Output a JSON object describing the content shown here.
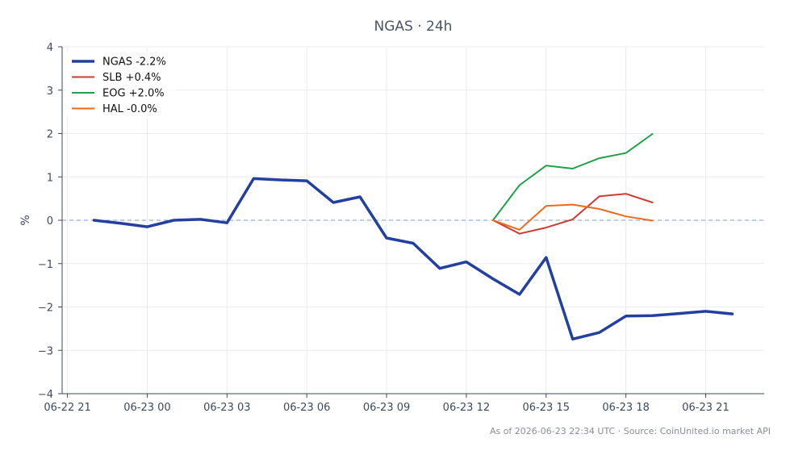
{
  "chart_data": {
    "type": "line",
    "title": "NGAS · 24h",
    "ylabel": "%",
    "xlabel": "",
    "x_tick_labels": [
      "06-22 21",
      "06-23 00",
      "06-23 03",
      "06-23 06",
      "06-23 09",
      "06-23 12",
      "06-23 15",
      "06-23 18",
      "06-23 21"
    ],
    "x_tick_hours": [
      -3,
      0,
      3,
      6,
      9,
      12,
      15,
      18,
      21
    ],
    "xlim_hours": [
      -3.2,
      23.2
    ],
    "ylim": [
      -4,
      4
    ],
    "y_ticks": [
      -4,
      -3,
      -2,
      -1,
      0,
      1,
      2,
      3,
      4
    ],
    "y_tick_labels": [
      "−4",
      "−3",
      "−2",
      "−1",
      "0",
      "1",
      "2",
      "3",
      "4"
    ],
    "reference_line": 0,
    "grid": true,
    "legend_position": "top-left",
    "series": [
      {
        "name": "NGAS -2.2%",
        "color": "#2340a0",
        "width": 3.5,
        "points": [
          [
            -2,
            0.0
          ],
          [
            -1,
            -0.07
          ],
          [
            0,
            -0.15
          ],
          [
            1,
            0.0
          ],
          [
            2,
            0.02
          ],
          [
            3,
            -0.06
          ],
          [
            4,
            0.96
          ],
          [
            5,
            0.93
          ],
          [
            6,
            0.91
          ],
          [
            7,
            0.41
          ],
          [
            8,
            0.54
          ],
          [
            9,
            -0.41
          ],
          [
            10,
            -0.53
          ],
          [
            11,
            -1.11
          ],
          [
            12,
            -0.96
          ],
          [
            13,
            -1.35
          ],
          [
            14,
            -1.71
          ],
          [
            15,
            -0.86
          ],
          [
            16,
            -2.74
          ],
          [
            17,
            -2.59
          ],
          [
            18,
            -2.21
          ],
          [
            19,
            -2.2
          ],
          [
            20,
            -2.15
          ],
          [
            21,
            -2.1
          ],
          [
            22,
            -2.16
          ]
        ]
      },
      {
        "name": "SLB +0.4%",
        "color": "#d03a32",
        "width": 2,
        "points": [
          [
            13,
            0.0
          ],
          [
            14,
            -0.31
          ],
          [
            15,
            -0.17
          ],
          [
            16,
            0.02
          ],
          [
            17,
            0.55
          ],
          [
            18,
            0.61
          ],
          [
            19,
            0.41
          ]
        ]
      },
      {
        "name": "EOG +2.0%",
        "color": "#1fa14a",
        "width": 2,
        "points": [
          [
            13,
            0.0
          ],
          [
            14,
            0.81
          ],
          [
            15,
            1.26
          ],
          [
            16,
            1.19
          ],
          [
            17,
            1.43
          ],
          [
            18,
            1.55
          ],
          [
            19,
            1.99
          ]
        ]
      },
      {
        "name": "HAL -0.0%",
        "color": "#ec6a1e",
        "width": 2,
        "points": [
          [
            13,
            0.0
          ],
          [
            14,
            -0.22
          ],
          [
            15,
            0.33
          ],
          [
            16,
            0.36
          ],
          [
            17,
            0.26
          ],
          [
            18,
            0.09
          ],
          [
            19,
            -0.01
          ]
        ]
      }
    ],
    "footer": "As of 2026-06-23 22:34 UTC · Source: CoinUnited.io market API"
  }
}
